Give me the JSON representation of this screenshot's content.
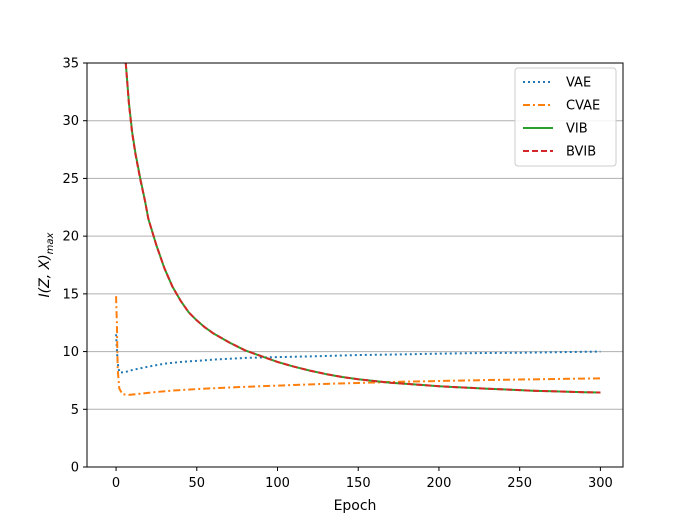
{
  "chart_data": {
    "type": "line",
    "xlabel": "Epoch",
    "ylabel": "I(Z, X)",
    "ylabel_subscript": "max",
    "xlim": [
      -18,
      314
    ],
    "ylim": [
      0,
      35
    ],
    "xticks": [
      0,
      50,
      100,
      150,
      200,
      250,
      300
    ],
    "yticks": [
      0,
      5,
      10,
      15,
      20,
      25,
      30,
      35
    ],
    "grid": "horizontal",
    "legend_position": "top-right",
    "series": [
      {
        "name": "VAE",
        "color": "#1f77b4",
        "dash": "dotted",
        "points": [
          [
            0,
            11.5
          ],
          [
            1,
            9.0
          ],
          [
            2,
            8.2
          ],
          [
            5,
            8.2
          ],
          [
            10,
            8.4
          ],
          [
            20,
            8.7
          ],
          [
            30,
            8.95
          ],
          [
            40,
            9.1
          ],
          [
            50,
            9.2
          ],
          [
            60,
            9.3
          ],
          [
            70,
            9.38
          ],
          [
            80,
            9.45
          ],
          [
            100,
            9.52
          ],
          [
            125,
            9.6
          ],
          [
            150,
            9.7
          ],
          [
            175,
            9.75
          ],
          [
            200,
            9.82
          ],
          [
            225,
            9.87
          ],
          [
            250,
            9.9
          ],
          [
            275,
            9.95
          ],
          [
            300,
            10.0
          ]
        ]
      },
      {
        "name": "CVAE",
        "color": "#ff7f0e",
        "dash": "dashdot",
        "points": [
          [
            0,
            14.8
          ],
          [
            0.5,
            12.5
          ],
          [
            1,
            8.5
          ],
          [
            2,
            6.8
          ],
          [
            4,
            6.3
          ],
          [
            8,
            6.25
          ],
          [
            15,
            6.35
          ],
          [
            25,
            6.5
          ],
          [
            35,
            6.62
          ],
          [
            50,
            6.75
          ],
          [
            75,
            6.92
          ],
          [
            100,
            7.05
          ],
          [
            125,
            7.18
          ],
          [
            150,
            7.28
          ],
          [
            175,
            7.38
          ],
          [
            200,
            7.45
          ],
          [
            225,
            7.52
          ],
          [
            250,
            7.58
          ],
          [
            275,
            7.63
          ],
          [
            300,
            7.68
          ]
        ]
      },
      {
        "name": "VIB",
        "color": "#2ca02c",
        "dash": "solid",
        "points": [
          [
            6,
            35
          ],
          [
            8,
            31.5
          ],
          [
            10,
            29.0
          ],
          [
            12,
            27.2
          ],
          [
            15,
            25.0
          ],
          [
            18,
            23.0
          ],
          [
            20,
            21.5
          ],
          [
            25,
            19.2
          ],
          [
            30,
            17.2
          ],
          [
            35,
            15.6
          ],
          [
            40,
            14.4
          ],
          [
            45,
            13.4
          ],
          [
            50,
            12.7
          ],
          [
            55,
            12.1
          ],
          [
            60,
            11.6
          ],
          [
            70,
            10.8
          ],
          [
            80,
            10.1
          ],
          [
            90,
            9.6
          ],
          [
            100,
            9.1
          ],
          [
            110,
            8.7
          ],
          [
            120,
            8.35
          ],
          [
            130,
            8.05
          ],
          [
            140,
            7.8
          ],
          [
            150,
            7.6
          ],
          [
            160,
            7.45
          ],
          [
            170,
            7.3
          ],
          [
            180,
            7.2
          ],
          [
            190,
            7.1
          ],
          [
            200,
            7.0
          ],
          [
            210,
            6.92
          ],
          [
            220,
            6.85
          ],
          [
            230,
            6.78
          ],
          [
            240,
            6.72
          ],
          [
            250,
            6.66
          ],
          [
            260,
            6.6
          ],
          [
            270,
            6.56
          ],
          [
            280,
            6.52
          ],
          [
            290,
            6.48
          ],
          [
            300,
            6.45
          ]
        ]
      },
      {
        "name": "BVIB",
        "color": "#d62728",
        "dash": "dashed",
        "points": [
          [
            6,
            35
          ],
          [
            8,
            31.4
          ],
          [
            10,
            28.9
          ],
          [
            12,
            27.1
          ],
          [
            15,
            24.9
          ],
          [
            18,
            23.0
          ],
          [
            20,
            21.5
          ],
          [
            25,
            19.2
          ],
          [
            30,
            17.2
          ],
          [
            35,
            15.6
          ],
          [
            40,
            14.4
          ],
          [
            45,
            13.4
          ],
          [
            50,
            12.7
          ],
          [
            55,
            12.1
          ],
          [
            60,
            11.6
          ],
          [
            70,
            10.8
          ],
          [
            80,
            10.1
          ],
          [
            90,
            9.6
          ],
          [
            100,
            9.1
          ],
          [
            110,
            8.7
          ],
          [
            120,
            8.35
          ],
          [
            130,
            8.05
          ],
          [
            140,
            7.8
          ],
          [
            150,
            7.6
          ],
          [
            160,
            7.45
          ],
          [
            170,
            7.3
          ],
          [
            180,
            7.2
          ],
          [
            190,
            7.1
          ],
          [
            200,
            7.0
          ],
          [
            210,
            6.92
          ],
          [
            220,
            6.85
          ],
          [
            230,
            6.78
          ],
          [
            240,
            6.72
          ],
          [
            250,
            6.66
          ],
          [
            260,
            6.6
          ],
          [
            270,
            6.56
          ],
          [
            280,
            6.52
          ],
          [
            290,
            6.48
          ],
          [
            300,
            6.45
          ]
        ]
      }
    ]
  }
}
